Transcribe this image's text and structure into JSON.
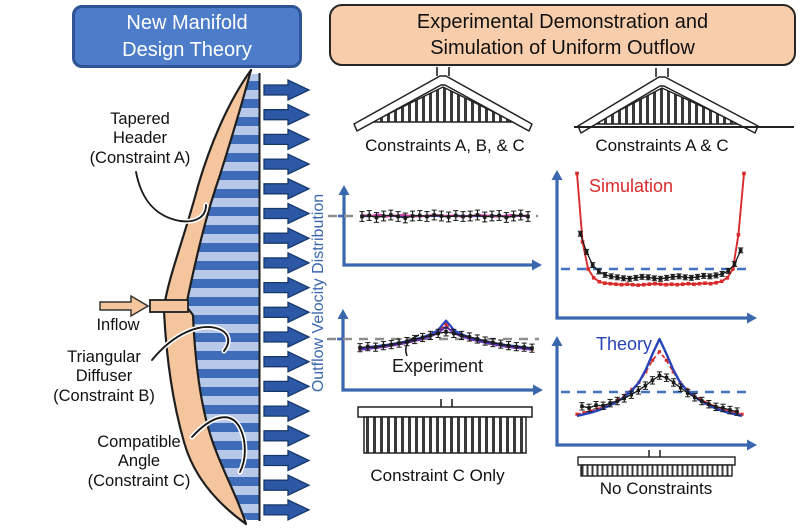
{
  "titles": {
    "left": "New Manifold\nDesign Theory",
    "right": "Experimental Demonstration and\nSimulation of Uniform Outflow"
  },
  "manifold_labels": {
    "tapered_header": "Tapered\nHeader\n(Constraint A)",
    "inflow": "Inflow",
    "triangular_diffuser": "Triangular\nDiffuser\n(Constraint B)",
    "compatible_angle": "Compatible\nAngle\n(Constraint C)"
  },
  "axis_label": "Outflow Velocity Distribution",
  "panels": {
    "abc": {
      "caption": "Constraints A, B, & C"
    },
    "ac": {
      "caption": "Constraints A & C",
      "annotation": "Simulation"
    },
    "c_only": {
      "caption": "Constraint C Only",
      "annotation": "Experiment"
    },
    "none": {
      "caption": "No Constraints",
      "annotation": "Theory"
    }
  },
  "colors": {
    "axis_blue": "#3a67ad",
    "dashed_blue": "#4472c4",
    "dashed_gray": "#8f8f8f",
    "simulation_red": "#d92b2b",
    "theory_blue": "#2743b8",
    "magenta": "#cc3f9e",
    "purple": "#6b30b5",
    "experiment_black": "#1a1a1a",
    "header_peach": "#f5c59e",
    "stripe_dark": "#3e6cb8",
    "stripe_light": "#b7c8e8",
    "outflow_arrow_blue": "#2c58a5",
    "title_left_bg": "#4d7dc8",
    "title_right_bg": "#f7cdab"
  },
  "chart_data": [
    {
      "panel": "Constraints A, B, & C",
      "type": "line",
      "xlabel": "",
      "ylabel": "Outflow Velocity Distribution",
      "reference_line": {
        "value": 1.0,
        "style": "dashed",
        "color": "#8f8f8f"
      },
      "series": [
        {
          "name": "theory",
          "color": "#2743b8",
          "style": "line",
          "width": 2,
          "values": [
            1,
            1,
            1,
            1,
            1,
            1,
            1,
            1,
            1,
            1,
            1,
            1,
            1,
            1,
            1,
            1,
            1,
            1,
            1,
            1,
            1
          ]
        },
        {
          "name": "magenta-curve",
          "color": "#cc3f9e",
          "style": "line",
          "width": 2,
          "values": [
            1.02,
            1,
            1.03,
            0.99,
            1.01,
            1.02,
            1,
            0.99,
            1.01,
            1.02,
            1,
            1.01,
            0.99,
            1,
            1.02,
            1.01,
            0.99,
            1,
            1.02,
            1,
            1.01
          ]
        },
        {
          "name": "experiment",
          "color": "#1a1a1a",
          "style": "errorbar",
          "error": 0.1,
          "values": [
            0.99,
            1.01,
            0.97,
            1,
            1.02,
            0.99,
            0.96,
            1,
            1.01,
            0.99,
            1.02,
            1,
            0.98,
            1.01,
            0.99,
            1,
            1.02,
            0.98,
            1,
            1.01,
            0.97,
            1,
            1.02,
            0.99
          ]
        }
      ]
    },
    {
      "panel": "Constraints A & C",
      "type": "line",
      "xlabel": "",
      "ylabel": "Outflow Velocity Distribution",
      "annotation": "Simulation",
      "reference_line": {
        "value": 1.0,
        "style": "dashed",
        "color": "#4472c4"
      },
      "series": [
        {
          "name": "simulation",
          "color": "#d92b2b",
          "style": "line-markers",
          "values": [
            2.95,
            1.55,
            1,
            0.82,
            0.74,
            0.71,
            0.7,
            0.69,
            0.68,
            0.69,
            0.68,
            0.67,
            0.68,
            0.69,
            0.7,
            0.69,
            0.68,
            0.69,
            0.68,
            0.69,
            0.7,
            0.69,
            0.7,
            0.71,
            0.7,
            0.72,
            0.75,
            0.82,
            1,
            1.7,
            2.95
          ]
        },
        {
          "name": "experiment",
          "color": "#1a1a1a",
          "style": "errorbar",
          "error": 0.05,
          "x0": 0.02,
          "x1": 0.98,
          "values": [
            1.72,
            1.35,
            1.08,
            0.95,
            0.88,
            0.85,
            0.83,
            0.81,
            0.8,
            0.82,
            0.84,
            0.83,
            0.81,
            0.8,
            0.82,
            0.84,
            0.85,
            0.83,
            0.82,
            0.84,
            0.86,
            0.85,
            0.87,
            0.9,
            0.96,
            1.1,
            1.38
          ]
        }
      ]
    },
    {
      "panel": "Constraint C Only",
      "type": "line",
      "xlabel": "",
      "ylabel": "Outflow Velocity Distribution",
      "annotation": "Experiment",
      "reference_line": {
        "value": 1.0,
        "style": "dashed",
        "color": "#8f8f8f"
      },
      "series": [
        {
          "name": "simulation",
          "color": "#d92b2b",
          "style": "dash-markers",
          "values": [
            0.8,
            0.82,
            0.84,
            0.86,
            0.89,
            0.92,
            0.96,
            1,
            1.06,
            1.13,
            1.29,
            1.13,
            1.06,
            1,
            0.96,
            0.92,
            0.89,
            0.86,
            0.84,
            0.82,
            0.8
          ]
        },
        {
          "name": "purple-curve",
          "color": "#6b30b5",
          "style": "line",
          "width": 2.2,
          "values": [
            0.79,
            0.81,
            0.83,
            0.85,
            0.88,
            0.91,
            0.95,
            0.99,
            1.04,
            1.11,
            1.24,
            1.11,
            1.04,
            0.99,
            0.95,
            0.91,
            0.88,
            0.85,
            0.83,
            0.81,
            0.79
          ]
        },
        {
          "name": "theory",
          "color": "#2743b8",
          "style": "line",
          "width": 2.2,
          "values": [
            0.82,
            0.84,
            0.86,
            0.88,
            0.91,
            0.94,
            0.98,
            1.02,
            1.08,
            1.16,
            1.36,
            1.16,
            1.08,
            1.02,
            0.98,
            0.94,
            0.91,
            0.88,
            0.86,
            0.84,
            0.82
          ]
        },
        {
          "name": "experiment",
          "color": "#1a1a1a",
          "style": "errorbar",
          "error": 0.08,
          "values": [
            0.83,
            0.85,
            0.84,
            0.87,
            0.89,
            0.92,
            0.95,
            0.99,
            1.03,
            1.07,
            1.11,
            1.14,
            1.11,
            1.07,
            1.04,
            1,
            0.96,
            0.93,
            0.9,
            0.87,
            0.85,
            0.84,
            0.82
          ]
        }
      ]
    },
    {
      "panel": "No Constraints",
      "type": "line",
      "xlabel": "",
      "ylabel": "Outflow Velocity Distribution",
      "annotation": "Theory",
      "reference_line": {
        "value": 1.0,
        "style": "dashed",
        "color": "#4472c4"
      },
      "series": [
        {
          "name": "simulation",
          "color": "#d92b2b",
          "style": "dash-markers",
          "values": [
            0.58,
            0.61,
            0.64,
            0.68,
            0.73,
            0.79,
            0.86,
            0.94,
            1.05,
            1.18,
            1.38,
            1.6,
            1.76,
            1.6,
            1.38,
            1.18,
            1.05,
            0.94,
            0.86,
            0.79,
            0.73,
            0.68,
            0.64,
            0.61,
            0.58
          ]
        },
        {
          "name": "theory",
          "color": "#2743b8",
          "style": "line",
          "width": 2.4,
          "values": [
            0.55,
            0.58,
            0.61,
            0.65,
            0.7,
            0.76,
            0.83,
            0.92,
            1.03,
            1.18,
            1.42,
            1.72,
            2,
            1.72,
            1.42,
            1.18,
            1.03,
            0.92,
            0.83,
            0.76,
            0.7,
            0.65,
            0.61,
            0.58,
            0.55
          ]
        },
        {
          "name": "experiment",
          "color": "#1a1a1a",
          "style": "errorbar",
          "error": 0.07,
          "x0": 0.03,
          "x1": 0.97,
          "values": [
            0.73,
            0.7,
            0.75,
            0.74,
            0.79,
            0.83,
            0.88,
            0.95,
            1.03,
            1.12,
            1.22,
            1.31,
            1.27,
            1.18,
            1.08,
            0.98,
            0.9,
            0.83,
            0.77,
            0.72,
            0.7,
            0.66,
            0.63
          ]
        }
      ]
    }
  ]
}
